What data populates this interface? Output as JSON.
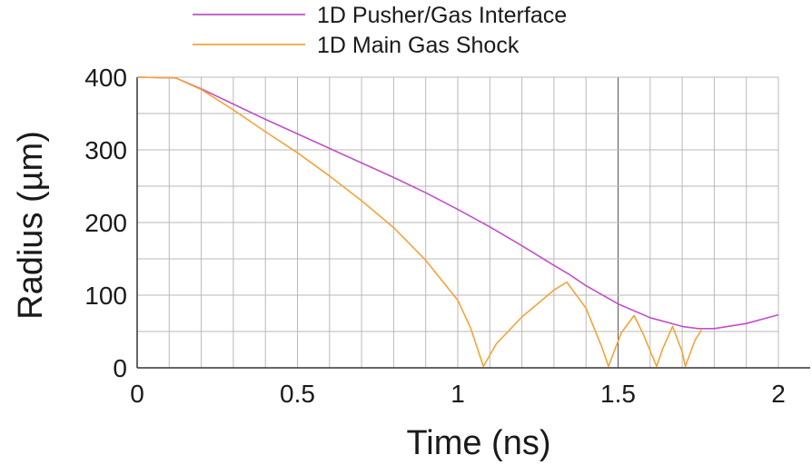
{
  "chart_data": {
    "type": "line",
    "xlabel": "Time (ns)",
    "ylabel": "Radius (µm)",
    "xlim": [
      0,
      2
    ],
    "ylim": [
      0,
      400
    ],
    "x_ticks": [
      "0",
      "0.5",
      "1",
      "1.5",
      "2"
    ],
    "y_ticks": [
      "0",
      "100",
      "200",
      "300",
      "400"
    ],
    "grid": true,
    "legend_position": "top",
    "series": [
      {
        "name": "1D Pusher/Gas Interface",
        "color": "#c04fc8",
        "points": [
          [
            0,
            400
          ],
          [
            0.12,
            399
          ],
          [
            0.2,
            384
          ],
          [
            0.3,
            363
          ],
          [
            0.4,
            342
          ],
          [
            0.5,
            322
          ],
          [
            0.6,
            302
          ],
          [
            0.7,
            282
          ],
          [
            0.8,
            262
          ],
          [
            0.9,
            241
          ],
          [
            1.0,
            218
          ],
          [
            1.1,
            194
          ],
          [
            1.2,
            168
          ],
          [
            1.3,
            141
          ],
          [
            1.35,
            128
          ],
          [
            1.4,
            113
          ],
          [
            1.5,
            88
          ],
          [
            1.6,
            69
          ],
          [
            1.7,
            57
          ],
          [
            1.75,
            54
          ],
          [
            1.8,
            54
          ],
          [
            1.9,
            61
          ],
          [
            2.0,
            73
          ]
        ]
      },
      {
        "name": "1D Main Gas Shock",
        "color": "#f3a43a",
        "points": [
          [
            0,
            400
          ],
          [
            0.12,
            399
          ],
          [
            0.2,
            383
          ],
          [
            0.3,
            355
          ],
          [
            0.4,
            325
          ],
          [
            0.5,
            296
          ],
          [
            0.6,
            264
          ],
          [
            0.7,
            230
          ],
          [
            0.8,
            193
          ],
          [
            0.9,
            148
          ],
          [
            1.0,
            93
          ],
          [
            1.04,
            55
          ],
          [
            1.08,
            2
          ],
          [
            1.12,
            33
          ],
          [
            1.2,
            70
          ],
          [
            1.3,
            107
          ],
          [
            1.34,
            118
          ],
          [
            1.4,
            82
          ],
          [
            1.45,
            28
          ],
          [
            1.47,
            2
          ],
          [
            1.51,
            48
          ],
          [
            1.55,
            72
          ],
          [
            1.58,
            45
          ],
          [
            1.62,
            2
          ],
          [
            1.64,
            27
          ],
          [
            1.67,
            57
          ],
          [
            1.7,
            22
          ],
          [
            1.71,
            2
          ],
          [
            1.74,
            38
          ],
          [
            1.76,
            52
          ]
        ]
      }
    ]
  }
}
